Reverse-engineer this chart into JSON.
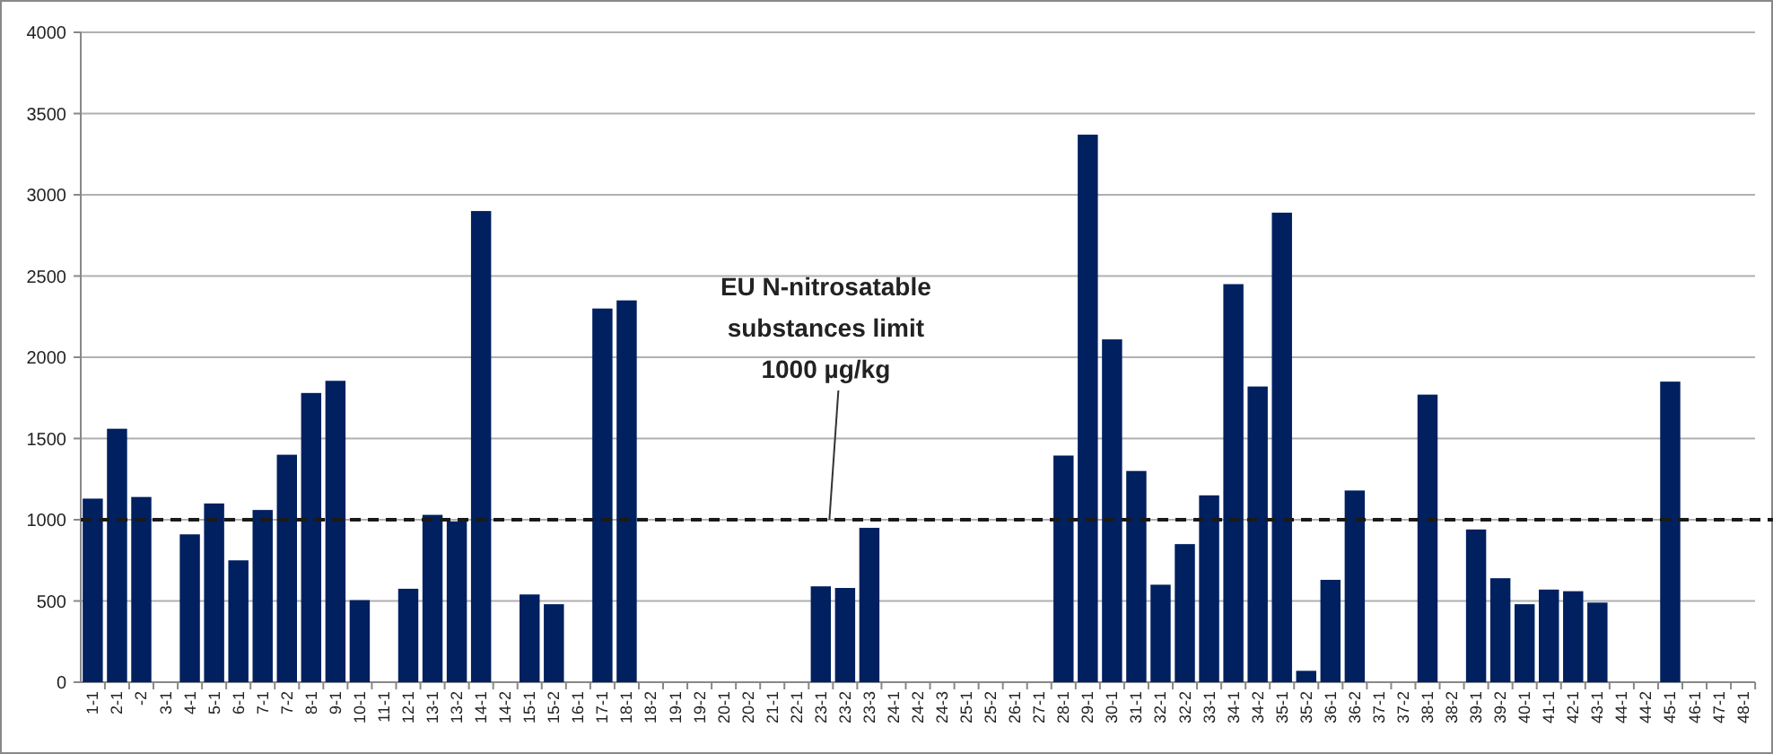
{
  "chart_data": {
    "type": "bar",
    "categories": [
      "1-1",
      "2-1",
      "-2",
      "3-1",
      "4-1",
      "5-1",
      "6-1",
      "7-1",
      "7-2",
      "8-1",
      "9-1",
      "10-1",
      "11-1",
      "12-1",
      "13-1",
      "13-2",
      "14-1",
      "14-2",
      "15-1",
      "15-2",
      "16-1",
      "17-1",
      "18-1",
      "18-2",
      "19-1",
      "19-2",
      "20-1",
      "20-2",
      "21-1",
      "22-1",
      "23-1",
      "23-2",
      "23-3",
      "24-1",
      "24-2",
      "24-3",
      "25-1",
      "25-2",
      "26-1",
      "27-1",
      "28-1",
      "29-1",
      "30-1",
      "31-1",
      "32-1",
      "32-2",
      "33-1",
      "34-1",
      "34-2",
      "35-1",
      "35-2",
      "36-1",
      "36-2",
      "37-1",
      "37-2",
      "38-1",
      "38-2",
      "39-1",
      "39-2",
      "40-1",
      "41-1",
      "42-1",
      "43-1",
      "44-1",
      "44-2",
      "45-1",
      "46-1",
      "47-1",
      "48-1"
    ],
    "values": [
      1130,
      1560,
      1140,
      null,
      910,
      1100,
      750,
      1060,
      1400,
      1780,
      1855,
      505,
      null,
      575,
      1030,
      990,
      2900,
      null,
      540,
      480,
      null,
      2300,
      2350,
      null,
      null,
      null,
      null,
      null,
      null,
      null,
      590,
      580,
      950,
      null,
      null,
      null,
      null,
      null,
      null,
      null,
      1395,
      3370,
      2110,
      1300,
      600,
      850,
      1150,
      2450,
      1820,
      2890,
      70,
      630,
      1180,
      null,
      null,
      1770,
      null,
      940,
      640,
      480,
      570,
      560,
      490,
      null,
      null,
      1850,
      null,
      null,
      null
    ],
    "color": "#002060",
    "ylim": [
      0,
      4000
    ],
    "yticks": [
      0,
      500,
      1000,
      1500,
      2000,
      2500,
      3000,
      3500,
      4000
    ],
    "grid": "y",
    "ref_lines": [
      {
        "axis": "y",
        "value": 1000,
        "label": "EU N-nitrosatable substances limit 1000 µg/kg",
        "color": "#1a1a1a",
        "line_style": "dashed"
      }
    ]
  }
}
